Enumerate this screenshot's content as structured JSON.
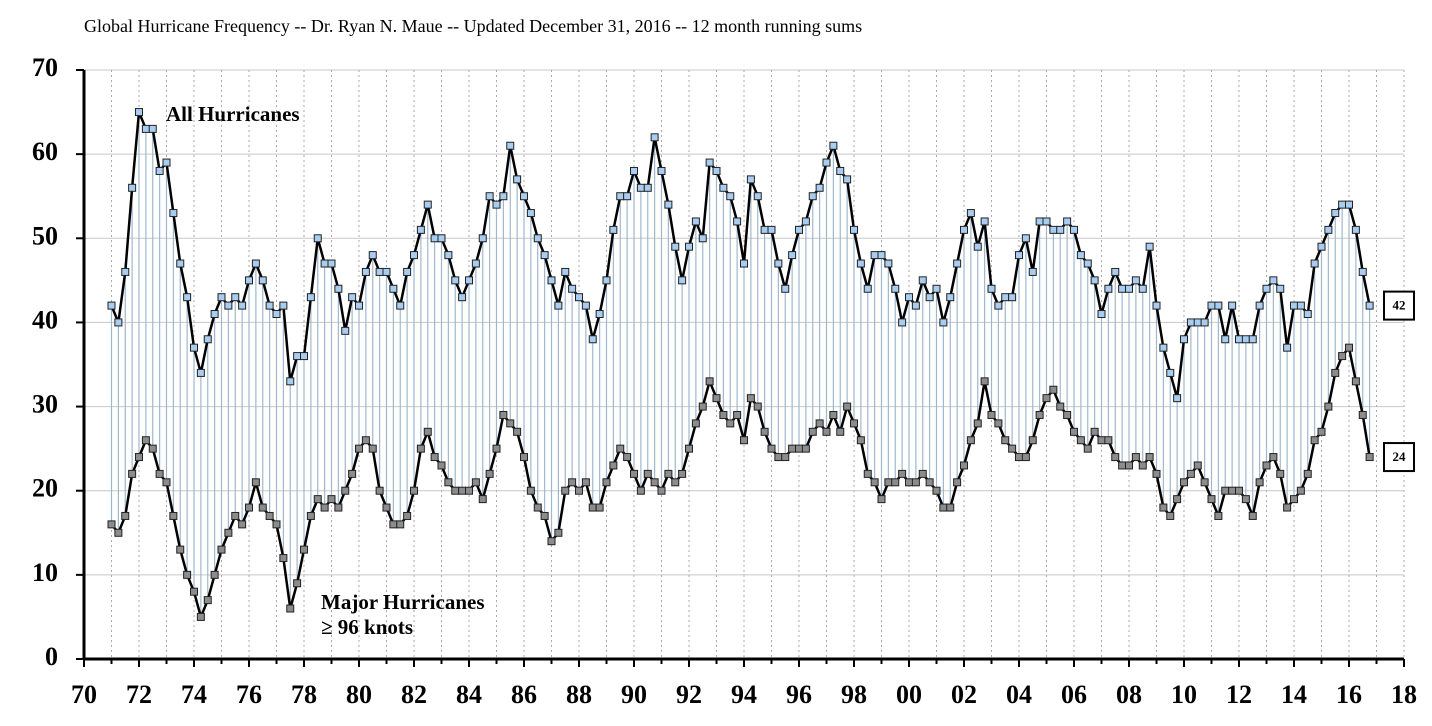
{
  "chart_data": {
    "type": "line",
    "title": "Global Hurricane Frequency -- Dr. Ryan N. Maue -- Updated December 31, 2016 -- 12 month running sums",
    "annotations": [
      "All Hurricanes",
      "Major Hurricanes",
      "≥ 96 knots"
    ],
    "xlim": [
      1970,
      2018
    ],
    "xticks": [
      {
        "value": 1970,
        "label": "70"
      },
      {
        "value": 1972,
        "label": "72"
      },
      {
        "value": 1974,
        "label": "74"
      },
      {
        "value": 1976,
        "label": "76"
      },
      {
        "value": 1978,
        "label": "78"
      },
      {
        "value": 1980,
        "label": "80"
      },
      {
        "value": 1982,
        "label": "82"
      },
      {
        "value": 1984,
        "label": "84"
      },
      {
        "value": 1986,
        "label": "86"
      },
      {
        "value": 1988,
        "label": "88"
      },
      {
        "value": 1990,
        "label": "90"
      },
      {
        "value": 1992,
        "label": "92"
      },
      {
        "value": 1994,
        "label": "94"
      },
      {
        "value": 1996,
        "label": "96"
      },
      {
        "value": 1998,
        "label": "98"
      },
      {
        "value": 2000,
        "label": "00"
      },
      {
        "value": 2002,
        "label": "02"
      },
      {
        "value": 2004,
        "label": "04"
      },
      {
        "value": 2006,
        "label": "06"
      },
      {
        "value": 2008,
        "label": "08"
      },
      {
        "value": 2010,
        "label": "10"
      },
      {
        "value": 2012,
        "label": "12"
      },
      {
        "value": 2014,
        "label": "14"
      },
      {
        "value": 2016,
        "label": "16"
      },
      {
        "value": 2018,
        "label": "18"
      }
    ],
    "xminor_ticks": [
      1971,
      1973,
      1975,
      1977,
      1979,
      1981,
      1983,
      1985,
      1987,
      1989,
      1991,
      1993,
      1995,
      1997,
      1999,
      2001,
      2003,
      2005,
      2007,
      2009,
      2011,
      2013,
      2015,
      2017
    ],
    "ylim": [
      0,
      70
    ],
    "yticks": [
      0,
      10,
      20,
      30,
      40,
      50,
      60,
      70
    ],
    "grid": true,
    "x": [
      1971,
      1971.25,
      1971.5,
      1971.75,
      1972,
      1972.25,
      1972.5,
      1972.75,
      1973,
      1973.25,
      1973.5,
      1973.75,
      1974,
      1974.25,
      1974.5,
      1974.75,
      1975,
      1975.25,
      1975.5,
      1975.75,
      1976,
      1976.25,
      1976.5,
      1976.75,
      1977,
      1977.25,
      1977.5,
      1977.75,
      1978,
      1978.25,
      1978.5,
      1978.75,
      1979,
      1979.25,
      1979.5,
      1979.75,
      1980,
      1980.25,
      1980.5,
      1980.75,
      1981,
      1981.25,
      1981.5,
      1981.75,
      1982,
      1982.25,
      1982.5,
      1982.75,
      1983,
      1983.25,
      1983.5,
      1983.75,
      1984,
      1984.25,
      1984.5,
      1984.75,
      1985,
      1985.25,
      1985.5,
      1985.75,
      1986,
      1986.25,
      1986.5,
      1986.75,
      1987,
      1987.25,
      1987.5,
      1987.75,
      1988,
      1988.25,
      1988.5,
      1988.75,
      1989,
      1989.25,
      1989.5,
      1989.75,
      1990,
      1990.25,
      1990.5,
      1990.75,
      1991,
      1991.25,
      1991.5,
      1991.75,
      1992,
      1992.25,
      1992.5,
      1992.75,
      1993,
      1993.25,
      1993.5,
      1993.75,
      1994,
      1994.25,
      1994.5,
      1994.75,
      1995,
      1995.25,
      1995.5,
      1995.75,
      1996,
      1996.25,
      1996.5,
      1996.75,
      1997,
      1997.25,
      1997.5,
      1997.75,
      1998,
      1998.25,
      1998.5,
      1998.75,
      1999,
      1999.25,
      1999.5,
      1999.75,
      2000,
      2000.25,
      2000.5,
      2000.75,
      2001,
      2001.25,
      2001.5,
      2001.75,
      2002,
      2002.25,
      2002.5,
      2002.75,
      2003,
      2003.25,
      2003.5,
      2003.75,
      2004,
      2004.25,
      2004.5,
      2004.75,
      2005,
      2005.25,
      2005.5,
      2005.75,
      2006,
      2006.25,
      2006.5,
      2006.75,
      2007,
      2007.25,
      2007.5,
      2007.75,
      2008,
      2008.25,
      2008.5,
      2008.75,
      2009,
      2009.25,
      2009.5,
      2009.75,
      2010,
      2010.25,
      2010.5,
      2010.75,
      2011,
      2011.25,
      2011.5,
      2011.75,
      2012,
      2012.25,
      2012.5,
      2012.75,
      2013,
      2013.25,
      2013.5,
      2013.75,
      2014,
      2014.25,
      2014.5,
      2014.75,
      2015,
      2015.25,
      2015.5,
      2015.75,
      2016,
      2016.25,
      2016.5,
      2016.75
    ],
    "series": [
      {
        "name": "All Hurricanes",
        "color": "#a8cdf0",
        "line_color": "#000000",
        "values": [
          42,
          40,
          46,
          56,
          65,
          63,
          63,
          58,
          59,
          53,
          47,
          43,
          37,
          34,
          38,
          41,
          43,
          42,
          43,
          42,
          45,
          47,
          45,
          42,
          41,
          42,
          33,
          36,
          36,
          43,
          50,
          47,
          47,
          44,
          39,
          43,
          42,
          46,
          48,
          46,
          46,
          44,
          42,
          46,
          48,
          51,
          54,
          50,
          50,
          48,
          45,
          43,
          45,
          47,
          50,
          55,
          54,
          55,
          61,
          57,
          55,
          53,
          50,
          48,
          45,
          42,
          46,
          44,
          43,
          42,
          38,
          41,
          45,
          51,
          55,
          55,
          58,
          56,
          56,
          62,
          58,
          54,
          49,
          45,
          49,
          52,
          50,
          59,
          58,
          56,
          55,
          52,
          47,
          57,
          55,
          51,
          51,
          47,
          44,
          48,
          51,
          52,
          55,
          56,
          59,
          61,
          58,
          57,
          51,
          47,
          44,
          48,
          48,
          47,
          44,
          40,
          43,
          42,
          45,
          43,
          44,
          40,
          43,
          47,
          51,
          53,
          49,
          52,
          44,
          42,
          43,
          43,
          48,
          50,
          46,
          52,
          52,
          51,
          51,
          52,
          51,
          48,
          47,
          45,
          41,
          44,
          46,
          44,
          44,
          45,
          44,
          49,
          42,
          37,
          34,
          31,
          38,
          40,
          40,
          40,
          42,
          42,
          38,
          42,
          38,
          38,
          38,
          42,
          44,
          45,
          44,
          37,
          42,
          42,
          41,
          47,
          49,
          51,
          53,
          54,
          54,
          51,
          46,
          42
        ]
      },
      {
        "name": "Major Hurricanes",
        "color": "#8c8c8c",
        "line_color": "#000000",
        "values": [
          16,
          15,
          17,
          22,
          24,
          26,
          25,
          22,
          21,
          17,
          13,
          10,
          8,
          5,
          7,
          10,
          13,
          15,
          17,
          16,
          18,
          21,
          18,
          17,
          16,
          12,
          6,
          9,
          13,
          17,
          19,
          18,
          19,
          18,
          20,
          22,
          25,
          26,
          25,
          20,
          18,
          16,
          16,
          17,
          20,
          25,
          27,
          24,
          23,
          21,
          20,
          20,
          20,
          21,
          19,
          22,
          25,
          29,
          28,
          27,
          24,
          20,
          18,
          17,
          14,
          15,
          20,
          21,
          20,
          21,
          18,
          18,
          21,
          23,
          25,
          24,
          22,
          20,
          22,
          21,
          20,
          22,
          21,
          22,
          25,
          28,
          30,
          33,
          31,
          29,
          28,
          29,
          26,
          31,
          30,
          27,
          25,
          24,
          24,
          25,
          25,
          25,
          27,
          28,
          27,
          29,
          27,
          30,
          28,
          26,
          22,
          21,
          19,
          21,
          21,
          22,
          21,
          21,
          22,
          21,
          20,
          18,
          18,
          21,
          23,
          26,
          28,
          33,
          29,
          28,
          26,
          25,
          24,
          24,
          26,
          29,
          31,
          32,
          30,
          29,
          27,
          26,
          25,
          27,
          26,
          26,
          24,
          23,
          23,
          24,
          23,
          24,
          22,
          18,
          17,
          19,
          21,
          22,
          23,
          21,
          19,
          17,
          20,
          20,
          20,
          19,
          17,
          21,
          23,
          24,
          22,
          18,
          19,
          20,
          22,
          26,
          27,
          30,
          34,
          36,
          37,
          33,
          29,
          24
        ]
      }
    ]
  }
}
